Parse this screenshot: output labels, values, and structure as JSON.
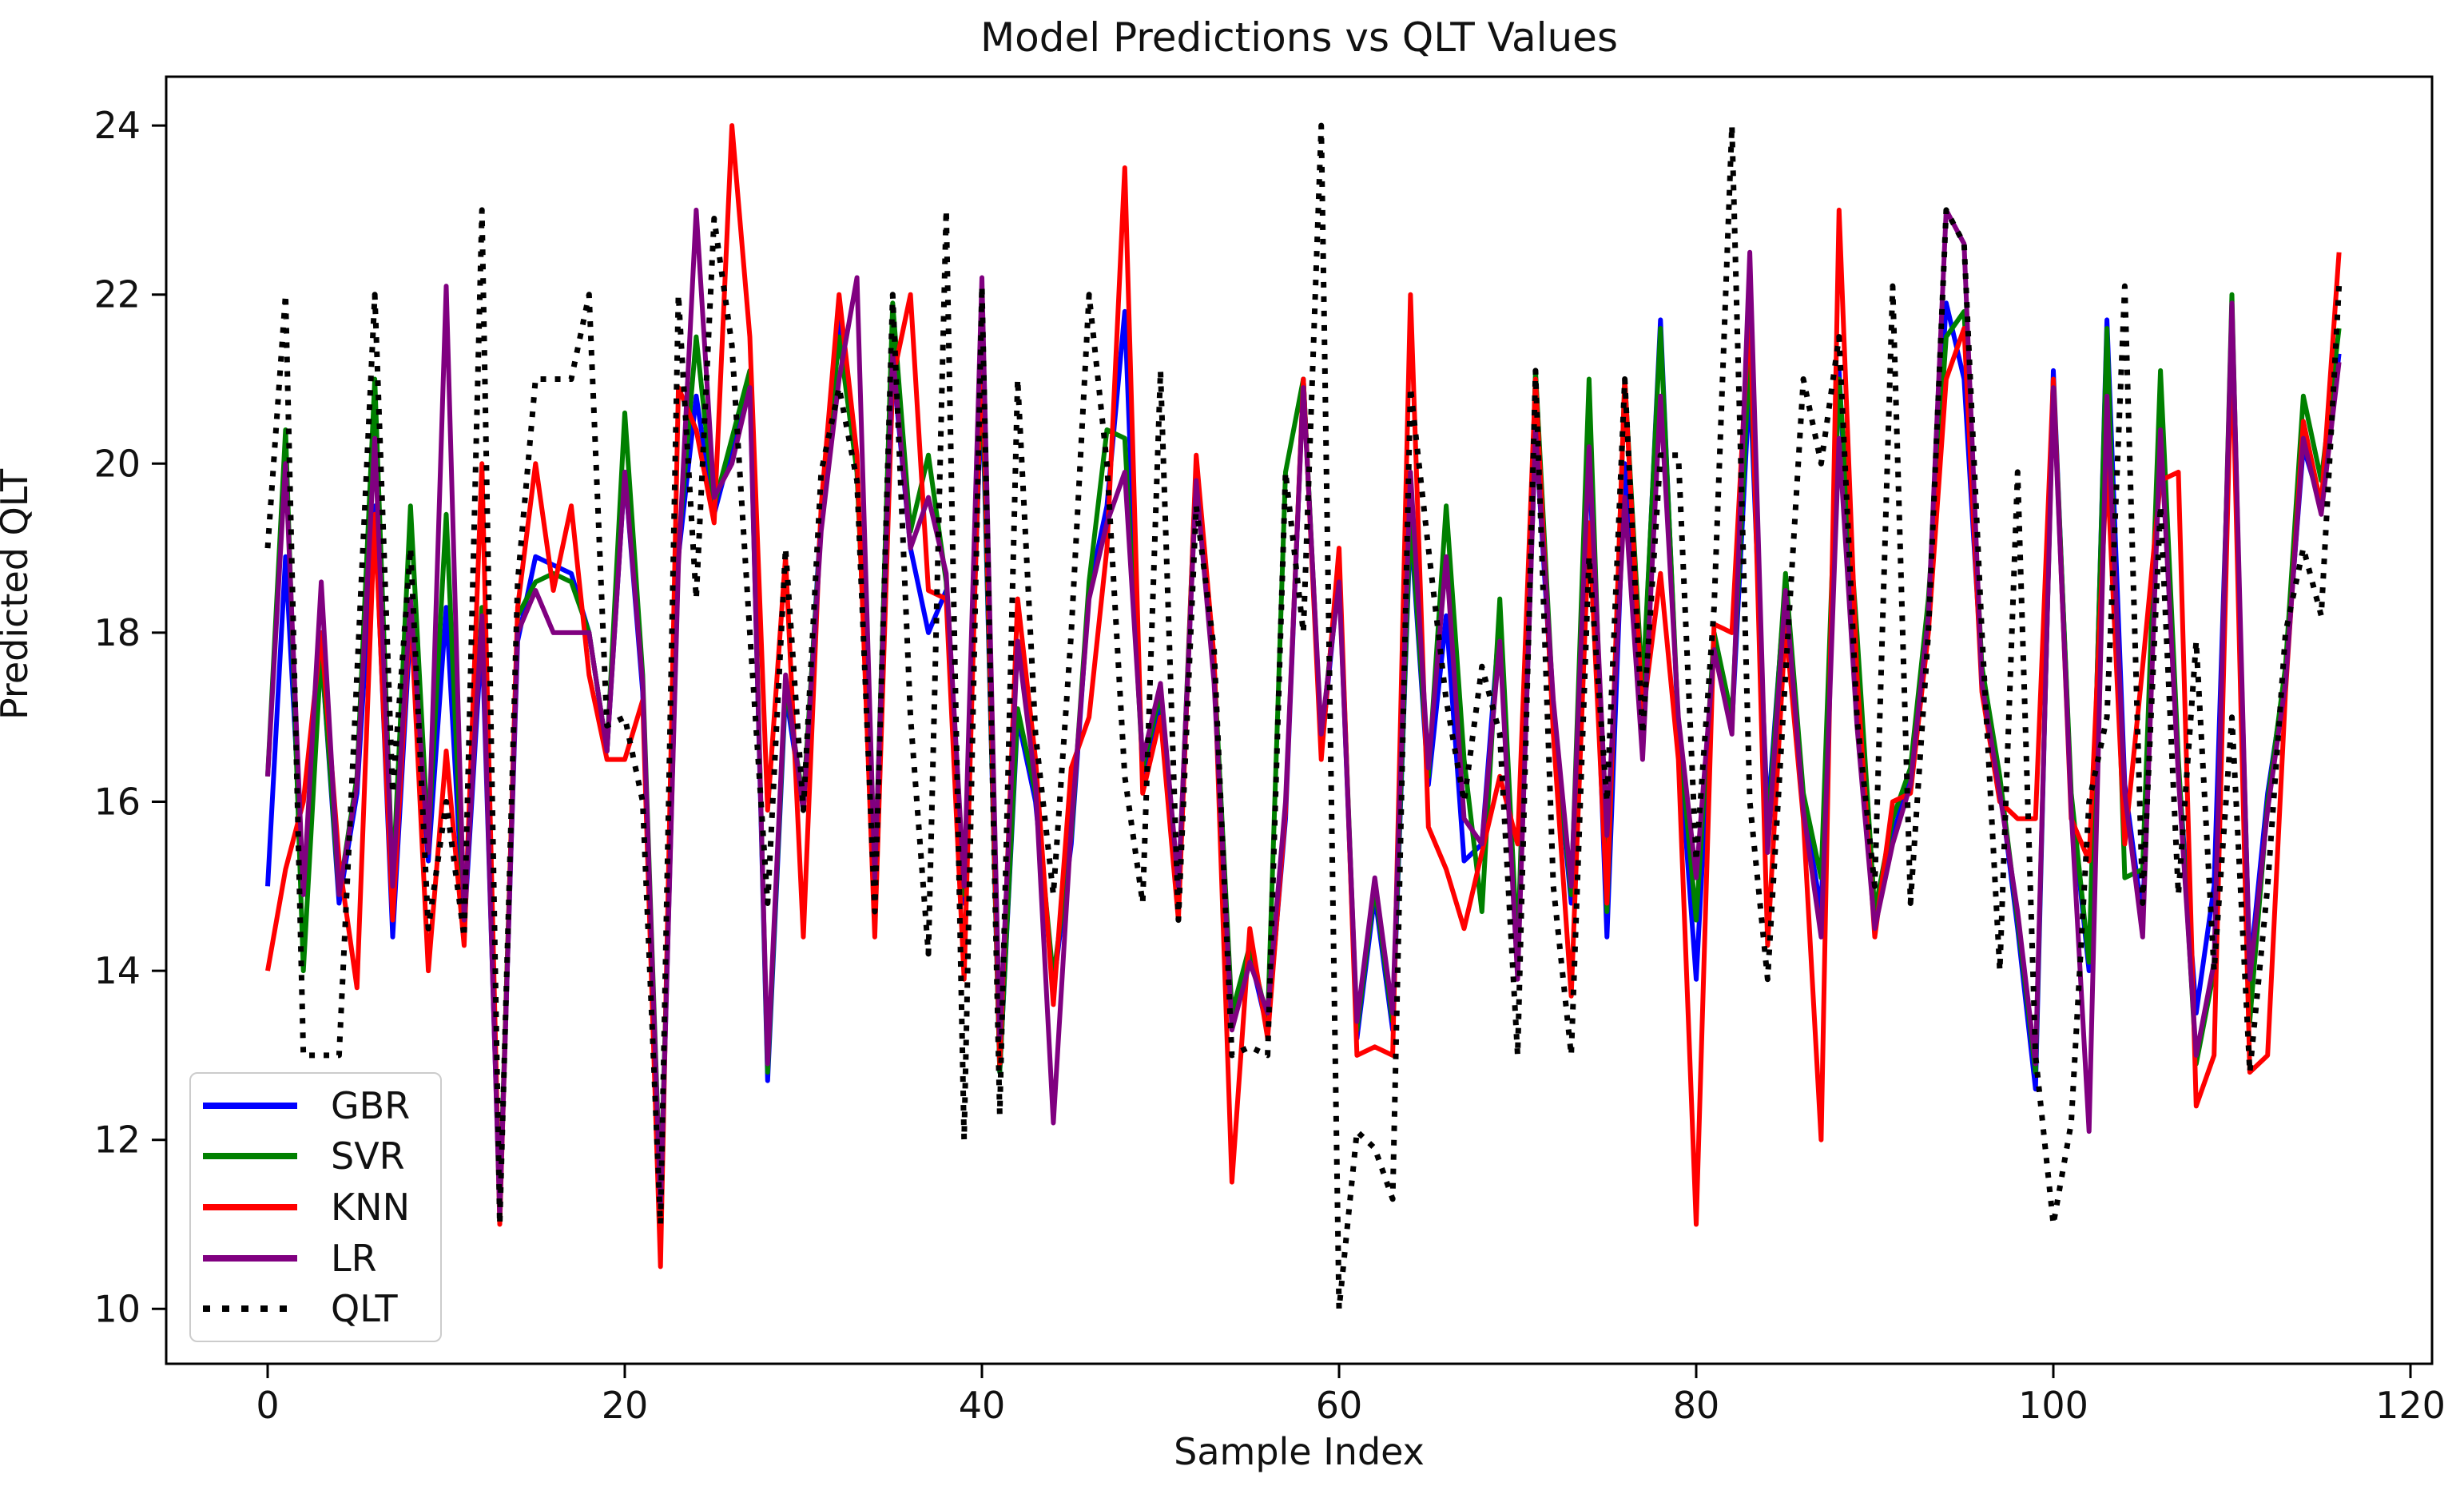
{
  "chart_data": {
    "type": "line",
    "title": "Model Predictions vs QLT Values",
    "xlabel": "Sample Index",
    "ylabel": "Predicted QLT",
    "x_range": [
      0,
      116
    ],
    "xlim": [
      -5.7,
      121.2
    ],
    "ylim": [
      9.35,
      24.58
    ],
    "xticks": [
      0,
      20,
      40,
      60,
      80,
      100,
      120
    ],
    "yticks": [
      10,
      12,
      14,
      16,
      18,
      20,
      22,
      24
    ],
    "grid": false,
    "legend_position": "lower left",
    "series": [
      {
        "name": "GBR",
        "color": "#0000ff",
        "style": "solid",
        "values": [
          15,
          18.9,
          15,
          17.8,
          14.8,
          16.1,
          19.5,
          14.4,
          18.1,
          15.3,
          18.3,
          14.5,
          18,
          11.2,
          17.9,
          18.9,
          18.8,
          18.7,
          18,
          16.6,
          19.9,
          17.3,
          11.2,
          18.9,
          20.8,
          19.4,
          20.2,
          21,
          12.7,
          17.3,
          15.9,
          19.4,
          21.7,
          20,
          14.9,
          21.2,
          19,
          18,
          18.5,
          14.8,
          21,
          12.8,
          17,
          16,
          13.8,
          15.5,
          18.5,
          19.5,
          21.8,
          16.3,
          17.2,
          14.8,
          19.9,
          17.5,
          13.4,
          14.2,
          13.3,
          15.8,
          21,
          16.6,
          18.7,
          13.2,
          14.9,
          13.3,
          19.3,
          16.2,
          18.2,
          15.3,
          15.5,
          18.2,
          14,
          20.4,
          17,
          14.8,
          20.2,
          14.4,
          20,
          17.2,
          21.7,
          16.8,
          13.9,
          17.9,
          16.9,
          21,
          15.8,
          18.6,
          16,
          14.7,
          21.1,
          17.1,
          14.6,
          15.6,
          16.3,
          18.3,
          21.9,
          21,
          17.5,
          16.2,
          14.5,
          12.6,
          21.1,
          16,
          14,
          21.7,
          16.2,
          14.6,
          20.6,
          16.4,
          13.5,
          15,
          21.5,
          14,
          16.1,
          17.5,
          20.2,
          19.5,
          21.3
        ]
      },
      {
        "name": "SVR",
        "color": "#008000",
        "style": "solid",
        "values": [
          16.3,
          20.4,
          14,
          17.8,
          14.9,
          16.3,
          21,
          15,
          19.5,
          15.5,
          19.4,
          14.6,
          18.3,
          11.2,
          18.2,
          18.6,
          18.7,
          18.6,
          18,
          16.6,
          20.6,
          17.5,
          11.3,
          19,
          21.5,
          19.5,
          20.3,
          21.1,
          12.8,
          17.4,
          16,
          19.3,
          21.5,
          19.9,
          15,
          21.9,
          19.2,
          20.1,
          18.6,
          14.9,
          21.2,
          12.8,
          17.1,
          16.1,
          13.9,
          15.6,
          18.6,
          20.4,
          20.3,
          16.4,
          17.3,
          14.9,
          20,
          17.6,
          13.5,
          14.3,
          13.4,
          19.9,
          21,
          16.7,
          18.8,
          13.3,
          15,
          13.4,
          19.4,
          16.3,
          19.5,
          16.5,
          14.7,
          18.4,
          14.2,
          21.1,
          17.1,
          14.9,
          21,
          14.7,
          21,
          17.3,
          21.6,
          16.9,
          14.6,
          18,
          17,
          21.4,
          15.6,
          18.7,
          16.1,
          15.1,
          21,
          18,
          14.7,
          15.8,
          16.4,
          18.4,
          21.5,
          21.8,
          17.6,
          16.3,
          14.6,
          12.8,
          21,
          16.1,
          14.1,
          21.6,
          15.1,
          15.2,
          21.1,
          16.5,
          12.9,
          14,
          22,
          13.4,
          16,
          17.6,
          20.8,
          19.8,
          21.6
        ]
      },
      {
        "name": "KNN",
        "color": "#ff0000",
        "style": "solid",
        "values": [
          14,
          15.2,
          16,
          18,
          15.3,
          13.8,
          19.4,
          14.6,
          18.3,
          14,
          16.6,
          14.3,
          20,
          11,
          18.3,
          20,
          18.5,
          19.5,
          17.5,
          16.5,
          16.5,
          17.2,
          10.5,
          20.9,
          20.4,
          19.3,
          24,
          21.5,
          15.9,
          18.9,
          14.4,
          19.5,
          22,
          20.1,
          14.4,
          21,
          22,
          18.5,
          18.4,
          13.9,
          21.5,
          12.9,
          18.4,
          16.5,
          13.6,
          16.4,
          17,
          19,
          23.5,
          16.1,
          17,
          14.6,
          20.1,
          17.7,
          11.5,
          14.5,
          13.2,
          15.9,
          21,
          16.5,
          19,
          13,
          13.1,
          13,
          22,
          15.7,
          15.2,
          14.5,
          15.4,
          16.3,
          15.5,
          21,
          16.8,
          13.7,
          19.3,
          14.8,
          21,
          17,
          18.7,
          16.5,
          11,
          18.1,
          18,
          21.9,
          14.3,
          18.1,
          15.8,
          12,
          23,
          17.5,
          14.4,
          16,
          16.1,
          18,
          21,
          21.6,
          17.3,
          16,
          15.8,
          15.8,
          21,
          15.8,
          15.3,
          20,
          15.5,
          17.6,
          19.8,
          19.9,
          12.4,
          13,
          21.5,
          12.8,
          13,
          17.3,
          20.5,
          19.5,
          22.5
        ]
      },
      {
        "name": "LR",
        "color": "#800080",
        "style": "solid",
        "values": [
          16.3,
          20,
          14.9,
          18.6,
          14.9,
          16.2,
          20.3,
          15,
          18.4,
          15.4,
          22.1,
          14.6,
          18.2,
          11.1,
          18,
          18.5,
          18,
          18,
          18,
          16.6,
          19.9,
          17.4,
          11.2,
          18.8,
          23,
          19.6,
          20,
          20.9,
          12.9,
          17.5,
          15.9,
          19.2,
          21,
          22.2,
          15.1,
          21.3,
          19,
          19.6,
          18.7,
          15,
          22.2,
          13.2,
          17.9,
          16.2,
          12.2,
          15.7,
          18.4,
          19.3,
          19.9,
          16.5,
          17.4,
          15,
          19.8,
          17.4,
          13.3,
          14.1,
          13.5,
          16,
          20.9,
          16.8,
          18.6,
          13.4,
          15.1,
          13.5,
          19.9,
          16.4,
          18.9,
          15.8,
          15.5,
          17.9,
          13.9,
          20.4,
          17.2,
          15,
          20.2,
          15.6,
          19.6,
          16.5,
          20.8,
          17,
          15.1,
          17.8,
          16.8,
          22.5,
          15.4,
          18.5,
          15.9,
          14.4,
          20.3,
          16.9,
          14.5,
          15.5,
          16.2,
          18.2,
          23,
          22.6,
          17.4,
          16.1,
          14.7,
          12.9,
          20.9,
          15.9,
          12.1,
          20.8,
          16.1,
          14.4,
          20.4,
          16.3,
          13,
          14.1,
          21.9,
          13.9,
          15.9,
          17.4,
          20.3,
          19.4,
          21.2
        ]
      },
      {
        "name": "QLT",
        "color": "#000000",
        "style": "dotted",
        "values": [
          19,
          22,
          13,
          13,
          13,
          17.5,
          22,
          16.1,
          19,
          14.5,
          16,
          14.4,
          23,
          11,
          18.6,
          21,
          21,
          21,
          22,
          16.9,
          17,
          16,
          11,
          22,
          18.4,
          22.9,
          21.4,
          18,
          14.8,
          19,
          15.9,
          19.9,
          20.9,
          19.8,
          14.7,
          22,
          17,
          14.2,
          23,
          12,
          22.1,
          12.3,
          21,
          16.8,
          14.9,
          18,
          22,
          20,
          16.3,
          14.8,
          21.1,
          14.6,
          19.5,
          17.8,
          13,
          13.1,
          13,
          19.9,
          18,
          24,
          10,
          12.1,
          11.9,
          11.3,
          20.9,
          19,
          17.2,
          16,
          17.6,
          16.8,
          13,
          21.1,
          15,
          13,
          18.9,
          16,
          21,
          16.8,
          20.1,
          20.1,
          15.3,
          18.3,
          24,
          16,
          13.9,
          17.5,
          21,
          20,
          21.5,
          17,
          15,
          22.1,
          14.8,
          18,
          23,
          22.6,
          18,
          14,
          19.9,
          13,
          11,
          12.2,
          16,
          17,
          22.1,
          14.8,
          19.5,
          14.9,
          17.9,
          14,
          17,
          12.8,
          15,
          18,
          19,
          18.2,
          22.1
        ]
      }
    ]
  }
}
